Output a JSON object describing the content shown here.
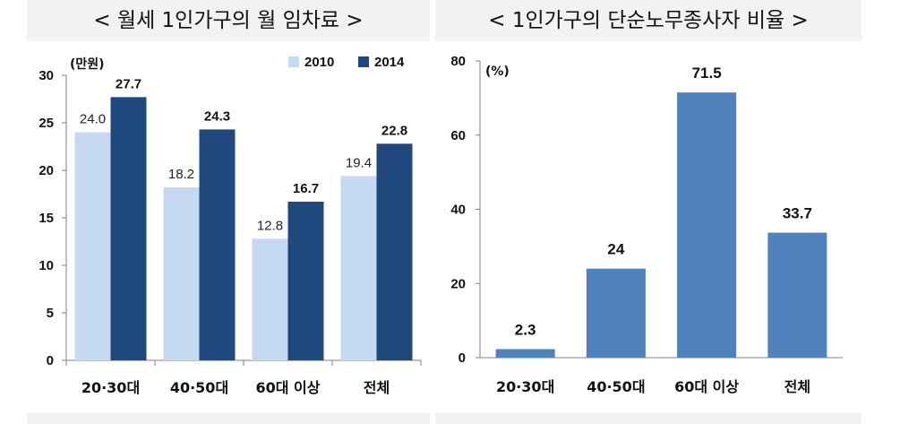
{
  "chart_data": [
    {
      "type": "bar",
      "title": "< 월세 1인가구의 월 임차료 >",
      "unit_label": "(만원)",
      "categories": [
        "20·30대",
        "40·50대",
        "60대 이상",
        "전체"
      ],
      "series": [
        {
          "name": "2010",
          "values": [
            24.0,
            18.2,
            12.8,
            19.4
          ],
          "value_labels": [
            "24.0",
            "18.2",
            "12.8",
            "19.4"
          ],
          "color": "#c5d9f1"
        },
        {
          "name": "2014",
          "values": [
            27.7,
            24.3,
            16.7,
            22.8
          ],
          "value_labels": [
            "27.7",
            "24.3",
            "16.7",
            "22.8"
          ],
          "color": "#1f497d"
        }
      ],
      "ylim": [
        0,
        30
      ],
      "yticks": [
        0,
        5,
        10,
        15,
        20,
        25,
        30
      ],
      "legend": "top-right",
      "grid": false
    },
    {
      "type": "bar",
      "title": "< 1인가구의 단순노무종사자 비율 >",
      "unit_label": "(%)",
      "categories": [
        "20·30대",
        "40·50대",
        "60대 이상",
        "전체"
      ],
      "series": [
        {
          "values": [
            2.3,
            24,
            71.5,
            33.7
          ],
          "value_labels": [
            "2.3",
            "24",
            "71.5",
            "33.7"
          ],
          "color": "#4f81bd"
        }
      ],
      "ylim": [
        0,
        80
      ],
      "yticks": [
        0,
        20,
        40,
        60,
        80
      ],
      "grid": false
    }
  ]
}
